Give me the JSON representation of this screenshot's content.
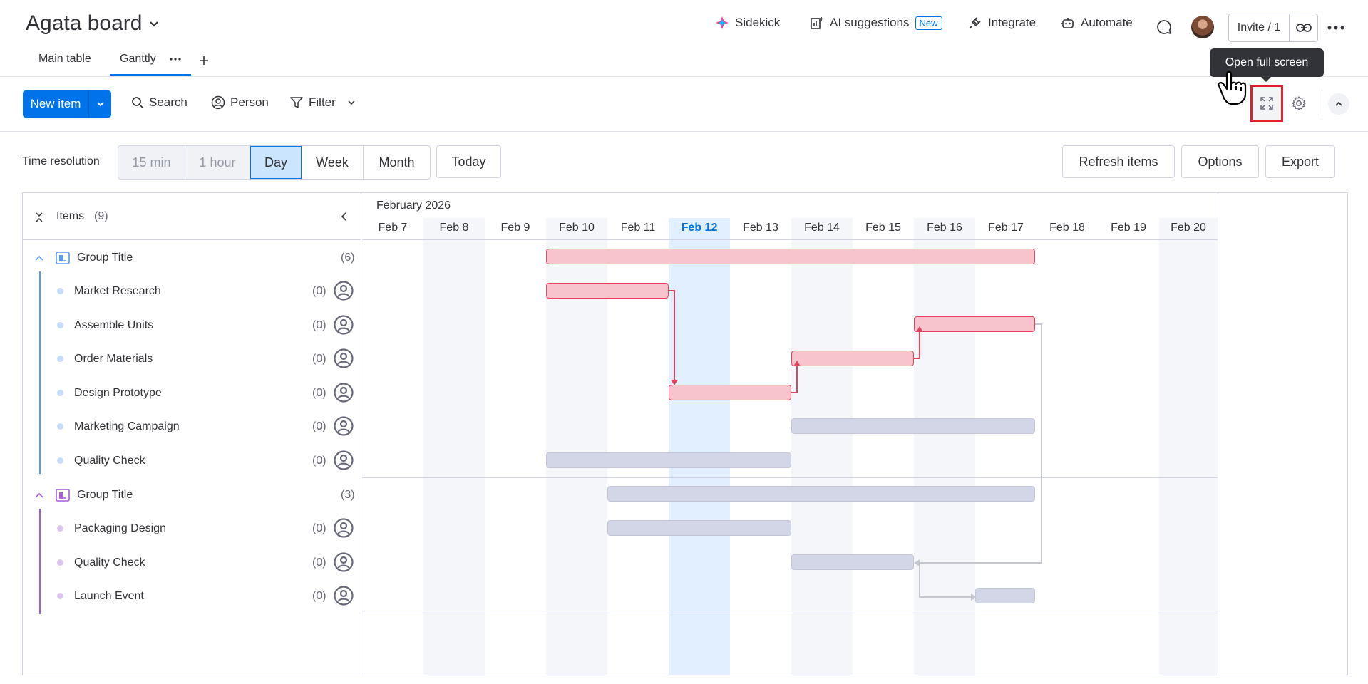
{
  "header": {
    "board_title": "Agata board",
    "sidekick": "Sidekick",
    "ai_suggestions": "AI suggestions",
    "new_badge": "New",
    "integrate": "Integrate",
    "automate": "Automate",
    "invite": "Invite / 1"
  },
  "tabs": [
    {
      "label": "Main table"
    },
    {
      "label": "Ganttly"
    }
  ],
  "toolbar": {
    "new_item": "New item",
    "search": "Search",
    "person": "Person",
    "filter": "Filter",
    "tooltip": "Open full screen"
  },
  "time_resolution": {
    "label": "Time resolution",
    "options": [
      "15 min",
      "1 hour",
      "Day",
      "Week",
      "Month"
    ],
    "selected": "Day",
    "today": "Today"
  },
  "actions": {
    "refresh": "Refresh items",
    "options": "Options",
    "export": "Export"
  },
  "gantt": {
    "items_label": "Items",
    "items_count": "(9)",
    "month": "February 2026",
    "days": [
      "Feb 7",
      "Feb 8",
      "Feb 9",
      "Feb 10",
      "Feb 11",
      "Feb 12",
      "Feb 13",
      "Feb 14",
      "Feb 15",
      "Feb 16",
      "Feb 17",
      "Feb 18",
      "Feb 19",
      "Feb 20"
    ],
    "today": "Feb 12",
    "groups": [
      {
        "title": "Group Title",
        "count": "(6)",
        "color": "#579bfc",
        "items": [
          {
            "name": "Market Research",
            "count": "(0)"
          },
          {
            "name": "Assemble Units",
            "count": "(0)"
          },
          {
            "name": "Order Materials",
            "count": "(0)"
          },
          {
            "name": "Design Prototype",
            "count": "(0)"
          },
          {
            "name": "Marketing Campaign",
            "count": "(0)"
          },
          {
            "name": "Quality Check",
            "count": "(0)"
          }
        ]
      },
      {
        "title": "Group Title",
        "count": "(3)",
        "color": "#a25ddc",
        "items": [
          {
            "name": "Packaging Design",
            "count": "(0)"
          },
          {
            "name": "Quality Check",
            "count": "(0)"
          },
          {
            "name": "Launch Event",
            "count": "(0)"
          }
        ]
      }
    ]
  },
  "colors": {
    "accent": "#0073ea",
    "bar_active": "#f7c4ce",
    "bar_active_border": "#e2445c",
    "bar_inactive": "#d3d6e6",
    "highlight": "#e2202b"
  }
}
